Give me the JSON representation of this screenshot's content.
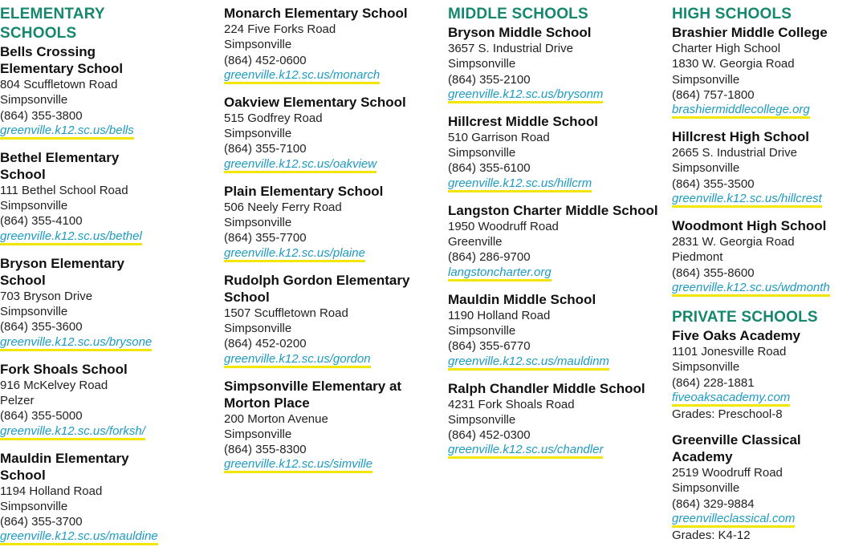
{
  "columns": [
    {
      "blocks": [
        {
          "heading": "ELEMENTARY SCHOOLS",
          "schools": [
            {
              "name": "Bells Crossing Elementary School",
              "lines": [
                "804 Scuffletown Road",
                "Simpsonville",
                "(864) 355-3800"
              ],
              "url": "greenville.k12.sc.us/bells"
            },
            {
              "name": "Bethel Elementary School",
              "lines": [
                "111 Bethel School Road",
                "Simpsonville",
                "(864) 355-4100"
              ],
              "url": "greenville.k12.sc.us/bethel"
            },
            {
              "name": "Bryson Elementary School",
              "lines": [
                "703 Bryson Drive",
                "Simpsonville",
                "(864) 355-3600"
              ],
              "url": "greenville.k12.sc.us/brysone"
            },
            {
              "name": "Fork Shoals School",
              "lines": [
                "916 McKelvey Road",
                "Pelzer",
                "(864) 355-5000"
              ],
              "url": "greenville.k12.sc.us/forksh/"
            },
            {
              "name": "Mauldin Elementary School",
              "lines": [
                "1194 Holland Road",
                "Simpsonville",
                "(864) 355-3700"
              ],
              "url": "greenville.k12.sc.us/mauldine"
            }
          ]
        }
      ]
    },
    {
      "blocks": [
        {
          "heading": "",
          "schools": [
            {
              "name": "Monarch Elementary School",
              "lines": [
                "224 Five Forks Road",
                "Simpsonville",
                "(864) 452-0600"
              ],
              "url": "greenville.k12.sc.us/monarch"
            },
            {
              "name": "Oakview Elementary School",
              "lines": [
                "515 Godfrey Road",
                "Simpsonville",
                "(864) 355-7100"
              ],
              "url": "greenville.k12.sc.us/oakview"
            },
            {
              "name": "Plain Elementary School",
              "lines": [
                "506 Neely Ferry Road",
                "Simpsonville",
                "(864) 355-7700"
              ],
              "url": "greenville.k12.sc.us/plaine"
            },
            {
              "name": "Rudolph Gordon Elementary School",
              "lines": [
                "1507 Scuffletown Road",
                "Simpsonville",
                "(864) 452-0200"
              ],
              "url": "greenville.k12.sc.us/gordon"
            },
            {
              "name": "Simpsonville Elementary at Morton Place",
              "lines": [
                "200 Morton Avenue",
                "Simpsonville",
                "(864) 355-8300"
              ],
              "url": "greenville.k12.sc.us/simville"
            }
          ]
        }
      ]
    },
    {
      "blocks": [
        {
          "heading": "MIDDLE SCHOOLS",
          "schools": [
            {
              "name": "Bryson Middle School",
              "lines": [
                "3657 S. Industrial Drive",
                "Simpsonville",
                "(864) 355-2100"
              ],
              "url": "greenville.k12.sc.us/brysonm"
            },
            {
              "name": "Hillcrest Middle School",
              "lines": [
                "510 Garrison Road",
                "Simpsonville",
                "(864) 355-6100"
              ],
              "url": "greenville.k12.sc.us/hillcrm"
            },
            {
              "name": "Langston Charter Middle School",
              "lines": [
                "1950 Woodruff Road",
                "Greenville",
                "(864) 286-9700"
              ],
              "url": "langstoncharter.org"
            },
            {
              "name": "Mauldin Middle School",
              "lines": [
                "1190 Holland Road",
                "Simpsonville",
                "(864) 355-6770"
              ],
              "url": "greenville.k12.sc.us/mauldinm"
            },
            {
              "name": "Ralph Chandler Middle School",
              "lines": [
                "4231 Fork Shoals Road",
                "Simpsonville",
                "(864) 452-0300"
              ],
              "url": "greenville.k12.sc.us/chandler"
            }
          ]
        }
      ]
    },
    {
      "blocks": [
        {
          "heading": "HIGH SCHOOLS",
          "schools": [
            {
              "name": "Brashier Middle College",
              "lines": [
                "Charter High School",
                "1830 W. Georgia Road",
                "Simpsonville",
                "(864) 757-1800"
              ],
              "url": "brashiermiddlecollege.org"
            },
            {
              "name": "Hillcrest High School",
              "lines": [
                "2665 S. Industrial Drive",
                "Simpsonville",
                "(864) 355-3500"
              ],
              "url": "greenville.k12.sc.us/hillcrest"
            },
            {
              "name": "Woodmont High School",
              "lines": [
                "2831 W. Georgia Road",
                "Piedmont",
                "(864) 355-8600"
              ],
              "url": "greenville.k12.sc.us/wdmonth"
            }
          ]
        },
        {
          "heading": "PRIVATE SCHOOLS",
          "schools": [
            {
              "name": "Five Oaks Academy",
              "lines": [
                "1101 Jonesville Road",
                "Simpsonville",
                "(864) 228-1881"
              ],
              "url": "fiveoaksacademy.com",
              "after": [
                "Grades: Preschool-8"
              ]
            },
            {
              "name": "Greenville Classical Academy",
              "lines": [
                "2519 Woodruff Road",
                "Simpsonville",
                "(864) 329-9884"
              ],
              "url": "greenvilleclassical.com",
              "after": [
                "Grades: K4-12"
              ]
            }
          ]
        }
      ]
    }
  ],
  "colors": {
    "heading": "#16876f",
    "link": "#1d9bc2",
    "link_underline": "#f2e600",
    "text": "#111111"
  }
}
